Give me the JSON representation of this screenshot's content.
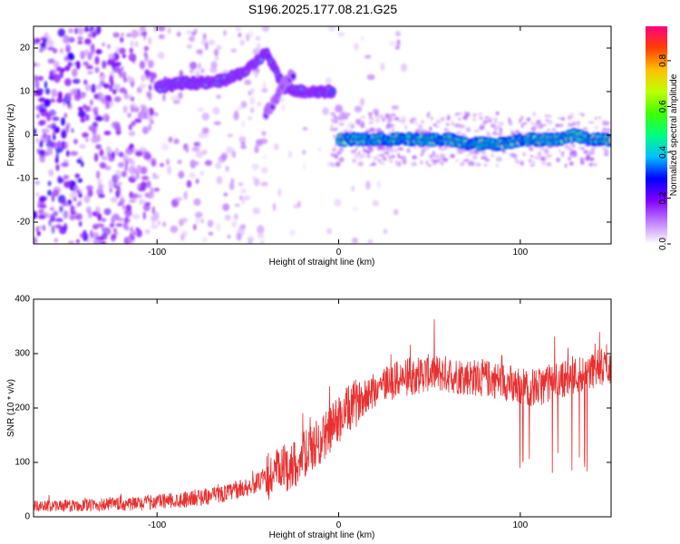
{
  "title": "S196.2025.177.08.21.G25",
  "chart_data": [
    {
      "type": "heatmap",
      "xlabel": "Height of straight line (km)",
      "ylabel": "Frequency (Hz)",
      "xlim": [
        -168,
        150
      ],
      "ylim": [
        -25,
        25
      ],
      "xticks": [
        -100,
        0,
        100
      ],
      "yticks": [
        -20,
        -10,
        0,
        10,
        20
      ],
      "colorbar": {
        "label": "Normalized spectral amplitude",
        "ticks": [
          0.0,
          0.2,
          0.4,
          0.6,
          0.8
        ],
        "range": [
          0,
          0.95
        ],
        "colors": [
          "#ffffff",
          "#c080ff",
          "#8000ff",
          "#0000ff",
          "#00c0ff",
          "#00ff80",
          "#40ff00",
          "#c0ff00",
          "#ffc000",
          "#ff4000",
          "#ff0080"
        ]
      },
      "ridges": [
        {
          "x": [
            -100,
            -85,
            -70,
            -60,
            -50,
            -45,
            -40,
            -30,
            -20,
            -10,
            -3
          ],
          "y": [
            11,
            12,
            12,
            13,
            15,
            17,
            19,
            11,
            10,
            10,
            10
          ],
          "amplitude": 0.45
        },
        {
          "x": [
            -40,
            -35,
            -30,
            -25
          ],
          "y": [
            5,
            8,
            12,
            14
          ],
          "amplitude": 0.3
        },
        {
          "x": [
            0,
            10,
            20,
            30,
            40,
            50,
            60,
            70,
            80,
            90,
            100,
            110,
            120,
            130,
            140,
            150
          ],
          "y": [
            -1,
            -1,
            -1,
            -1,
            -1,
            -1,
            -1,
            -2,
            -2,
            -2,
            -1,
            -1,
            -1,
            0,
            -1,
            -1
          ],
          "amplitude": 0.9
        }
      ]
    },
    {
      "type": "line",
      "xlabel": "Height of straight line (km)",
      "ylabel": "SNR (10 * v/v)",
      "xlim": [
        -168,
        150
      ],
      "ylim": [
        0,
        400
      ],
      "xticks": [
        -100,
        0,
        100
      ],
      "yticks": [
        0,
        100,
        200,
        300,
        400
      ],
      "color": "#e83030",
      "series": [
        {
          "x": [
            -168,
            -150,
            -130,
            -110,
            -100,
            -90,
            -80,
            -70,
            -60,
            -50,
            -45,
            -40,
            -35,
            -30,
            -25,
            -20,
            -15,
            -10,
            -5,
            0,
            5,
            10,
            15,
            20,
            25,
            30,
            40,
            50,
            60,
            70,
            80,
            90,
            95,
            100,
            105,
            110,
            115,
            120,
            125,
            130,
            135,
            140,
            145,
            150
          ],
          "y": [
            20,
            20,
            22,
            24,
            28,
            30,
            35,
            38,
            45,
            55,
            62,
            70,
            80,
            88,
            95,
            110,
            125,
            140,
            160,
            180,
            195,
            210,
            225,
            235,
            245,
            250,
            258,
            265,
            262,
            258,
            255,
            250,
            245,
            240,
            238,
            238,
            245,
            250,
            255,
            260,
            265,
            270,
            275,
            278
          ]
        }
      ]
    }
  ]
}
